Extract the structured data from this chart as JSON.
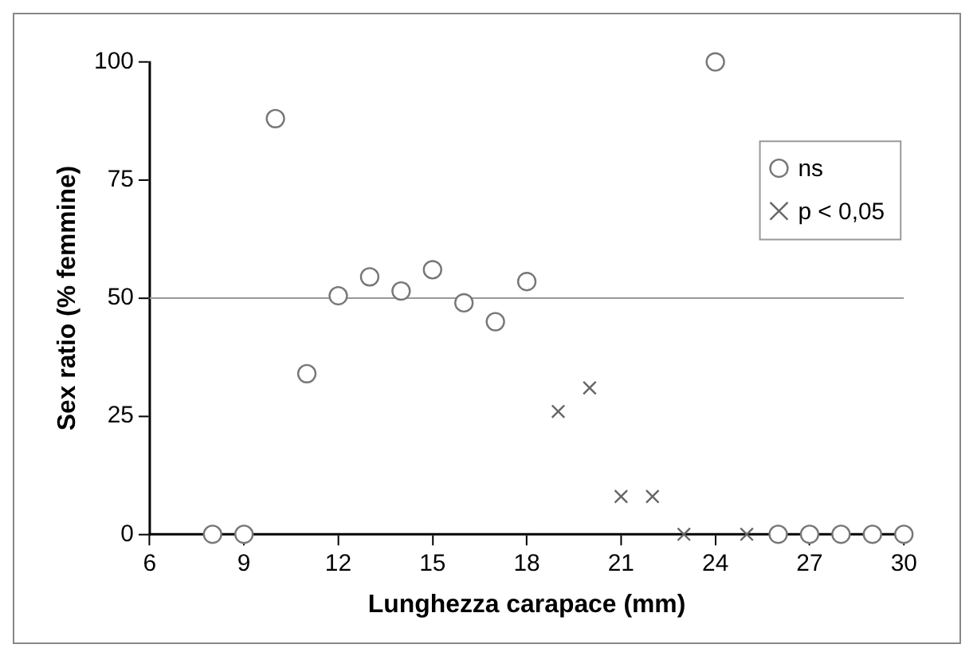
{
  "chart_data": {
    "type": "scatter",
    "xlabel": "Lunghezza carapace (mm)",
    "ylabel": "Sex ratio (% femmine)",
    "xlim": [
      6,
      30
    ],
    "xticks": [
      6,
      9,
      12,
      15,
      18,
      21,
      24,
      27,
      30
    ],
    "ylim": [
      0,
      100
    ],
    "yticks": [
      0,
      25,
      50,
      75,
      100
    ],
    "grid": false,
    "legend": "top right",
    "ref_lines": [
      {
        "axis": "y",
        "value": 50,
        "color": "#999999"
      }
    ],
    "series": [
      {
        "name": "ns",
        "color": "#777777",
        "marker": "circle",
        "x": [
          8,
          9,
          10,
          11,
          12,
          13,
          14,
          15,
          16,
          17,
          18,
          24,
          26,
          27,
          28,
          29,
          30
        ],
        "values": [
          0,
          0,
          88,
          34,
          50.5,
          54.5,
          51.5,
          56,
          49,
          45,
          53.5,
          100,
          0,
          0,
          0,
          0,
          0
        ]
      },
      {
        "name": "p < 0,05",
        "color": "#666666",
        "marker": "cross",
        "x": [
          19,
          20,
          21,
          22,
          23,
          25
        ],
        "values": [
          26,
          31,
          8,
          8,
          0,
          0
        ]
      }
    ]
  }
}
